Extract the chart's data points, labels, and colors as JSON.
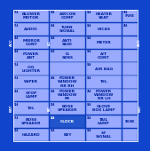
{
  "bg_color": "#1144cc",
  "cell_bg": "#99aaff",
  "border_color": "#0033aa",
  "text_color": "#002299",
  "clock_bg": "#2255cc",
  "clock_text": "#ffffff",
  "left_col": [
    {
      "amp": "15A",
      "label": "BLOWER\nMOTOR"
    },
    {
      "amp": "15A",
      "label": "AUDIO"
    },
    {
      "amp": "10A",
      "label": "MIRROR\nCONT"
    },
    {
      "amp": "10A",
      "label": "POWER\nANT"
    },
    {
      "amp": "15A",
      "label": "CIG\nLIGHTER"
    },
    {
      "amp": "15A",
      "label": "WIPER"
    },
    {
      "amp": "10A",
      "label": "STOP\nLAMP"
    },
    {
      "amp": "10A",
      "label": "TEL"
    },
    {
      "amp": "15A",
      "label": "BOSE\nSPEAKER"
    },
    {
      "amp": "10A",
      "label": "HAZARD"
    }
  ],
  "mid_col": [
    {
      "amp": "30A",
      "label": "AIRCON\nCOMP",
      "highlight": false
    },
    {
      "amp": "10A",
      "label": "TURN\nSIGNAL",
      "highlight": false
    },
    {
      "amp": "10A",
      "label": "ANTI\nSKID",
      "highlight": false
    },
    {
      "amp": "10A",
      "label": "D.\nSENS",
      "highlight": false
    },
    {
      "amp": "",
      "label": "",
      "highlight": false
    },
    {
      "amp": "40A",
      "label": "POWER\nWINDOW\nRR RH",
      "highlight": false
    },
    {
      "amp": "40A",
      "label": "POWER\nWINDOW\nFR",
      "highlight": false
    },
    {
      "amp": "10A",
      "label": "BOSE\nSPEAKER",
      "highlight": false
    },
    {
      "amp": "10A",
      "label": "CLOCK",
      "highlight": true
    },
    {
      "amp": "10A",
      "label": "KEY",
      "highlight": false
    }
  ],
  "right_col": [
    {
      "amp": "10A",
      "label": "HEATER\nSEAT"
    },
    {
      "amp": "10A",
      "label": "HICAS"
    },
    {
      "amp": "10A",
      "label": "METER"
    },
    {
      "amp": "10A",
      "label": "A/T\nCONT"
    },
    {
      "amp": "10A",
      "label": "AIR BAG"
    },
    {
      "amp": "10A",
      "label": "TEL"
    },
    {
      "amp": "40A",
      "label": "POWER\nWINDOW\nRR LH"
    },
    {
      "amp": "10A",
      "label": "GLOVE\nBOX LAMP"
    },
    {
      "amp": "10A",
      "label": "TAIL\nLAMP"
    },
    {
      "amp": "10A",
      "label": "ST\nSIGNAL"
    }
  ],
  "far_right": [
    {
      "amp": "30A",
      "label": "SPARE"
    },
    {
      "amp": "20A",
      "label": ""
    },
    {
      "amp": "",
      "label": ""
    },
    {
      "amp": "",
      "label": ""
    },
    {
      "amp": "",
      "label": ""
    },
    {
      "amp": "",
      "label": ""
    },
    {
      "amp": "",
      "label": ""
    },
    {
      "amp": "",
      "label": ""
    },
    {
      "amp": "",
      "label": "TRUNK"
    },
    {
      "amp": "",
      "label": ""
    }
  ],
  "acc_label": "ACC",
  "bat_label": "BAT",
  "acc_label2": "ACC",
  "bat_label2": "BAT"
}
